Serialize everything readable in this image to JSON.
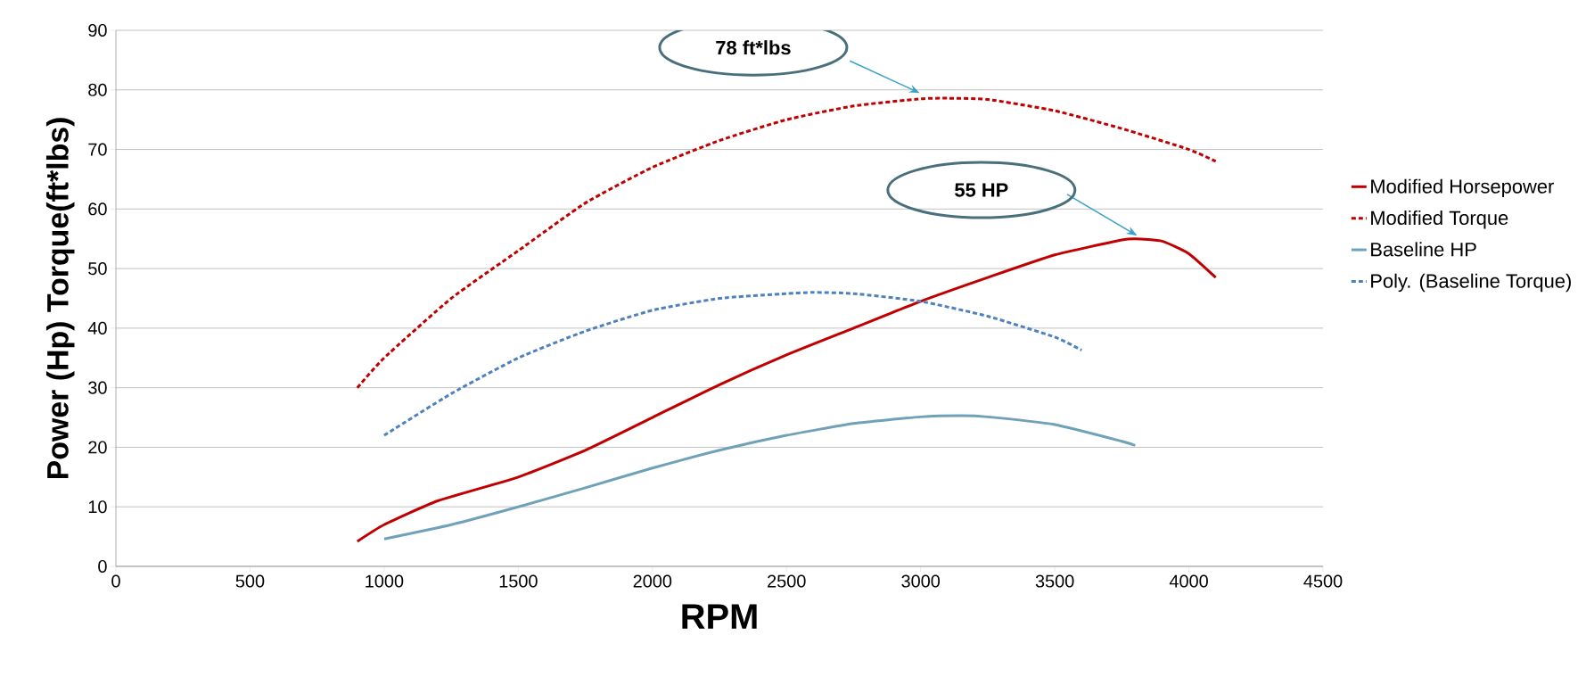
{
  "chart_data": {
    "type": "line",
    "xlabel": "RPM",
    "ylabel": "Power (Hp) Torque(ft*lbs)",
    "xlim": [
      0,
      4500
    ],
    "ylim": [
      0,
      90
    ],
    "xticks": [
      0,
      500,
      1000,
      1500,
      2000,
      2500,
      3000,
      3500,
      4000,
      4500
    ],
    "yticks": [
      0,
      10,
      20,
      30,
      40,
      50,
      60,
      70,
      80,
      90
    ],
    "grid": "y",
    "legend": "right",
    "series": [
      {
        "name": "Modified Horsepower",
        "color": "#c00000",
        "line_style": "solid",
        "x": [
          900,
          1000,
          1200,
          1500,
          1750,
          2000,
          2250,
          2500,
          2750,
          3000,
          3250,
          3500,
          3750,
          3800,
          3900,
          4000,
          4100
        ],
        "values": [
          4.2,
          7,
          11,
          15,
          19.5,
          25,
          30.5,
          35.5,
          40,
          44.5,
          48.5,
          52.3,
          54.8,
          55,
          54.6,
          52.5,
          48.5
        ]
      },
      {
        "name": "Modified Torque",
        "color": "#c00000",
        "line_style": "dashed",
        "x": [
          900,
          1000,
          1250,
          1500,
          1750,
          2000,
          2250,
          2500,
          2750,
          3000,
          3100,
          3250,
          3500,
          3750,
          4000,
          4100
        ],
        "values": [
          30,
          35,
          45,
          53,
          61,
          67,
          71.5,
          75,
          77.3,
          78.5,
          78.6,
          78.4,
          76.5,
          73.5,
          70,
          68
        ]
      },
      {
        "name": "Baseline HP",
        "color": "#6fa1b8",
        "line_style": "solid",
        "x": [
          1000,
          1250,
          1500,
          1750,
          2000,
          2250,
          2500,
          2750,
          3000,
          3150,
          3250,
          3500,
          3750,
          3800
        ],
        "values": [
          4.6,
          7,
          10,
          13.2,
          16.5,
          19.5,
          22,
          24,
          25.1,
          25.3,
          25.1,
          23.8,
          21,
          20.3
        ]
      },
      {
        "name": "Poly. (Baseline Torque)",
        "color": "#4f81bd",
        "line_style": "dashed",
        "x": [
          1000,
          1250,
          1500,
          1750,
          2000,
          2250,
          2500,
          2600,
          2750,
          3000,
          3250,
          3500,
          3600
        ],
        "values": [
          22,
          29,
          35,
          39.5,
          43,
          45,
          45.8,
          46,
          45.8,
          44.5,
          42,
          38.5,
          36.3
        ]
      }
    ],
    "annotations": [
      "78 ft*lbs",
      "55 HP"
    ]
  }
}
